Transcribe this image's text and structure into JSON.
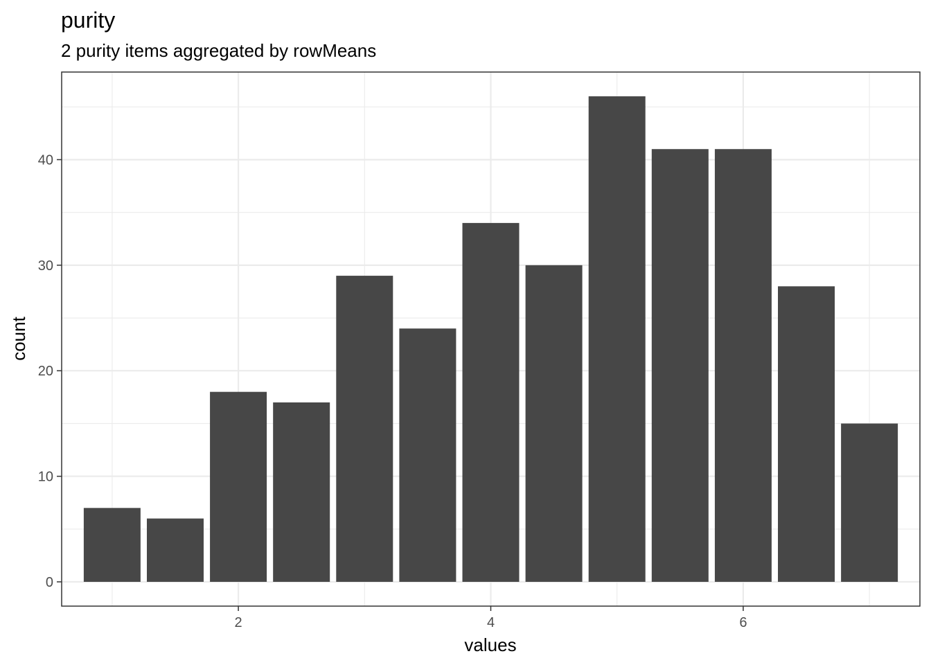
{
  "chart_data": {
    "type": "bar",
    "title": "purity",
    "subtitle": "2 purity items aggregated by rowMeans",
    "xlabel": "values",
    "ylabel": "count",
    "x": [
      1.0,
      1.5,
      2.0,
      2.5,
      3.0,
      3.5,
      4.0,
      4.5,
      5.0,
      5.5,
      6.0,
      6.5,
      7.0
    ],
    "values": [
      7,
      6,
      18,
      17,
      29,
      24,
      34,
      30,
      46,
      41,
      41,
      28,
      15
    ],
    "bar_width": 0.45,
    "xlim": [
      0.6,
      7.4
    ],
    "ylim": [
      -2.3,
      48.3
    ],
    "x_ticks": [
      2,
      4,
      6
    ],
    "y_ticks": [
      0,
      10,
      20,
      30,
      40
    ],
    "grid": true,
    "bar_color": "#474747",
    "grid_color": "#ebebeb",
    "panel_border_color": "#333333"
  }
}
